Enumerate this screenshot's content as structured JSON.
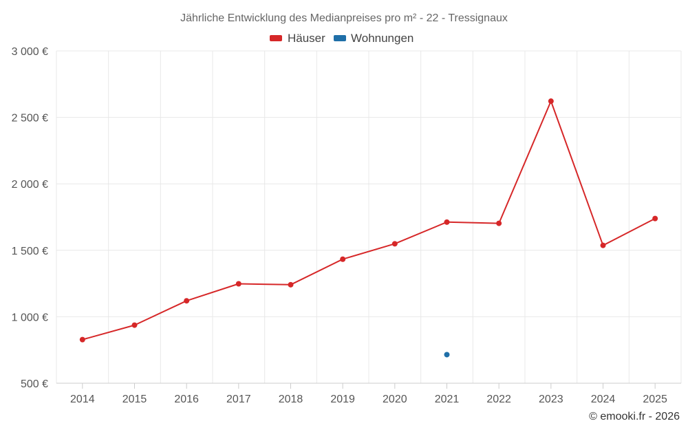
{
  "chart_data": {
    "type": "line",
    "title": "Jährliche Entwicklung des Medianpreises pro m² - 22 - Tressignaux",
    "categories": [
      "2014",
      "2015",
      "2016",
      "2017",
      "2018",
      "2019",
      "2020",
      "2021",
      "2022",
      "2023",
      "2024",
      "2025"
    ],
    "series": [
      {
        "name": "Häuser",
        "color": "#d62728",
        "values": [
          828,
          937,
          1120,
          1248,
          1241,
          1433,
          1549,
          1712,
          1703,
          2622,
          1537,
          1739
        ]
      },
      {
        "name": "Wohnungen",
        "color": "#1f6fa8",
        "values": [
          null,
          null,
          null,
          null,
          null,
          null,
          null,
          715,
          null,
          null,
          null,
          null
        ]
      }
    ],
    "ylim": [
      500,
      3000
    ],
    "yticks": [
      500,
      1000,
      1500,
      2000,
      2500,
      3000
    ],
    "ytick_labels": [
      "500 €",
      "1 000 €",
      "1 500 €",
      "2 000 €",
      "2 500 €",
      "3 000 €"
    ],
    "xlabel": "",
    "ylabel": "",
    "grid": true,
    "legend_position": "top-center"
  },
  "credit": "© emooki.fr - 2026"
}
